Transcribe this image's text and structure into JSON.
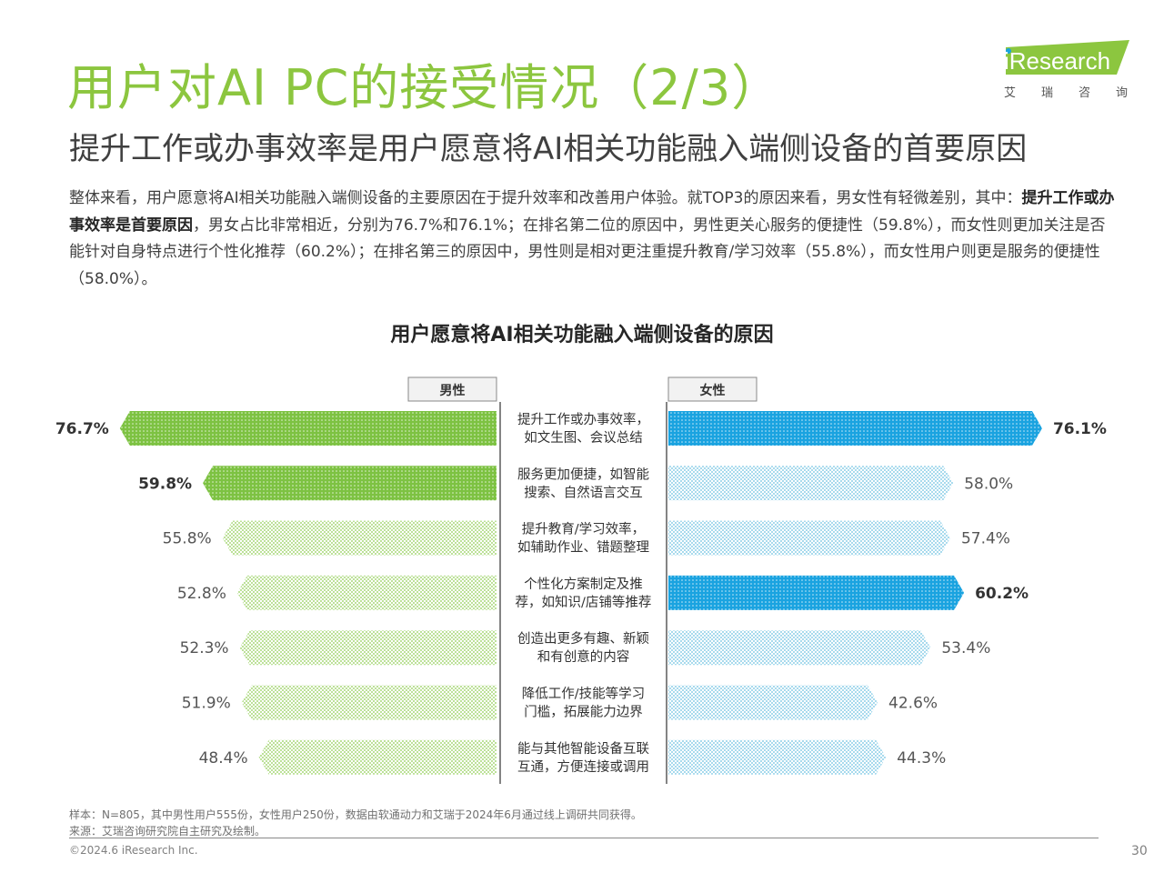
{
  "header": {
    "title": "用户对AI PC的接受情况（2/3）",
    "subtitle": "提升工作或办事效率是用户愿意将AI相关功能融入端侧设备的首要原因"
  },
  "logo": {
    "brand": "iResearch",
    "tagline": "艾 瑞 咨 询",
    "color": "#8cc63f"
  },
  "intro": {
    "part1": "整体来看，用户愿意将AI相关功能融入端侧设备的主要原因在于提升效率和改善用户体验。就TOP3的原因来看，男女性有轻微差别，其中：",
    "bold": "提升工作或办事效率是首要原因",
    "part2": "，男女占比非常相近，分别为76.7%和76.1%；在排名第二位的原因中，男性更关心服务的便捷性（59.8%），而女性则更加关注是否能针对自身特点进行个性化推荐（60.2%）；在排名第三的原因中，男性则是相对更注重提升教育/学习效率（55.8%），而女性用户则更是服务的便捷性（58.0%）。"
  },
  "chart_data": {
    "type": "bar",
    "title": "用户愿意将AI相关功能融入端侧设备的原因",
    "categories": [
      [
        "提升工作或办事效率，",
        "如文生图、会议总结"
      ],
      [
        "服务更加便捷，如智能",
        "搜索、自然语言交互"
      ],
      [
        "提升教育/学习效率，",
        "如辅助作业、错题整理"
      ],
      [
        "个性化方案制定及推",
        "荐，如知识/店铺等推荐"
      ],
      [
        "创造出更多有趣、新颖",
        "和有创意的内容"
      ],
      [
        "降低工作/技能等学习",
        "门槛，拓展能力边界"
      ],
      [
        "能与其他智能设备互联",
        "互通，方便连接或调用"
      ]
    ],
    "series": [
      {
        "name": "男性",
        "values": [
          76.7,
          59.8,
          55.8,
          52.8,
          52.3,
          51.9,
          48.4
        ],
        "highlight": [
          true,
          true,
          false,
          false,
          false,
          false,
          false
        ],
        "color": "#7dc242"
      },
      {
        "name": "女性",
        "values": [
          76.1,
          58.0,
          57.4,
          60.2,
          53.4,
          42.6,
          44.3
        ],
        "highlight": [
          true,
          false,
          false,
          true,
          false,
          false,
          false
        ],
        "color": "#1aa3e0"
      }
    ],
    "value_labels_male": [
      "76.7%",
      "59.8%",
      "55.8%",
      "52.8%",
      "52.3%",
      "51.9%",
      "48.4%"
    ],
    "value_labels_female": [
      "76.1%",
      "58.0%",
      "57.4%",
      "60.2%",
      "53.4%",
      "42.6%",
      "44.3%"
    ],
    "layout": "back-to-back horizontal bars, male left, female right"
  },
  "footer": {
    "sample": "样本：N=805，其中男性用户555份，女性用户250份，数据由软通动力和艾瑞于2024年6月通过线上调研共同获得。",
    "source": "来源：艾瑞咨询研究院自主研究及绘制。",
    "copyright": "©2024.6 iResearch Inc.",
    "page": "30"
  }
}
